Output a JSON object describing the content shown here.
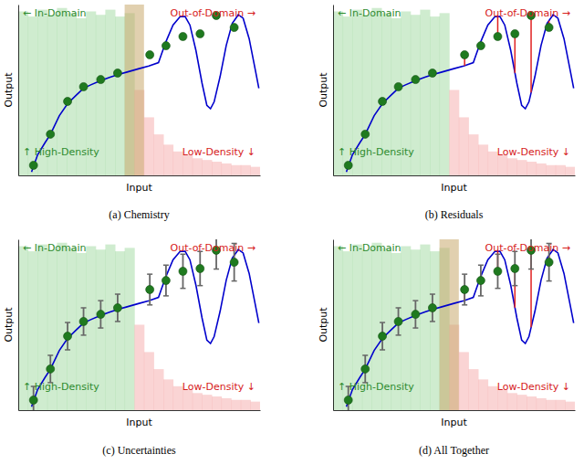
{
  "chart_data": [
    {
      "type": "scatter",
      "title": "(a) Chemistry",
      "x_label": "Input",
      "y_label": "Output",
      "xlim": [
        0,
        10
      ],
      "ylim": [
        0,
        10
      ],
      "tick_labels": false,
      "grid": false,
      "annotations": [
        "← In-Domain",
        "Out-of-Domain →",
        "↑ High-Density",
        "Low-Density ↓"
      ],
      "density": {
        "bins": [
          0,
          0.4,
          0.8,
          1.2,
          1.6,
          2,
          2.4,
          2.8,
          3.2,
          3.6,
          4,
          4.4,
          4.8,
          5.2,
          5.6,
          6,
          6.4,
          6.8,
          7.2,
          7.6,
          8,
          8.4,
          8.8,
          9.2,
          9.6,
          10
        ],
        "counts": [
          9.6,
          9.3,
          9.7,
          9.4,
          9.8,
          9.5,
          9.2,
          9.6,
          9.4,
          9.7,
          9.3,
          9.5,
          5.0,
          3.4,
          2.4,
          1.8,
          1.4,
          1.2,
          1.0,
          0.9,
          0.8,
          0.7,
          0.6,
          0.6,
          0.5
        ],
        "colors": [
          "#a8dca8",
          "#a8dca8",
          "#a8dca8",
          "#a8dca8",
          "#a8dca8",
          "#a8dca8",
          "#a8dca8",
          "#a8dca8",
          "#a8dca8",
          "#a8dca8",
          "#a8dca8",
          "#a8dca8",
          "#f5b0b0",
          "#f5b0b0",
          "#f5b0b0",
          "#f5b0b0",
          "#f5b0b0",
          "#f5b0b0",
          "#f5b0b0",
          "#f5b0b0",
          "#f5b0b0",
          "#f5b0b0",
          "#f5b0b0",
          "#f5b0b0",
          "#f5b0b0"
        ]
      },
      "highlight": {
        "range": [
          4.4,
          5.2
        ],
        "color": "#c8a96e"
      },
      "curve": {
        "x": [
          0.55,
          0.8,
          1.1,
          1.33,
          1.7,
          2.04,
          2.4,
          2.7,
          3.0,
          3.41,
          3.8,
          4.11,
          4.5,
          5.0,
          5.4,
          5.8,
          5.9,
          6.1,
          6.4,
          6.7,
          6.9,
          7.1,
          7.35,
          7.6,
          7.8,
          7.95,
          8.1,
          8.35,
          8.6,
          8.85,
          9.1,
          9.3,
          9.55,
          9.8,
          9.95
        ],
        "values": [
          0.2,
          1.2,
          1.9,
          2.4,
          3.5,
          4.2,
          4.7,
          5.1,
          5.3,
          5.55,
          5.75,
          5.9,
          6.05,
          6.25,
          6.4,
          6.6,
          7.0,
          7.8,
          8.8,
          9.3,
          9.3,
          8.8,
          7.3,
          5.4,
          4.1,
          3.9,
          4.3,
          5.8,
          7.6,
          8.9,
          9.4,
          9.2,
          8.0,
          6.2,
          5.1
        ],
        "color": "#0000cc"
      },
      "points": {
        "x": [
          0.63,
          1.33,
          2.04,
          2.7,
          3.41,
          4.11,
          5.44,
          6.11,
          6.81,
          7.52,
          8.19,
          8.93
        ],
        "values": [
          0.59,
          2.41,
          4.33,
          5.19,
          5.61,
          5.99,
          7.06,
          7.59,
          8.13,
          8.29,
          9.36,
          8.66
        ],
        "color": "#1f7a1f"
      }
    },
    {
      "type": "scatter",
      "title": "(b) Residuals",
      "x_label": "Input",
      "y_label": "Output",
      "xlim": [
        0,
        10
      ],
      "ylim": [
        0,
        10
      ],
      "tick_labels": false,
      "grid": false,
      "annotations": [
        "← In-Domain",
        "Out-of-Domain →",
        "↑ High-Density",
        "Low-Density ↓"
      ],
      "density": {
        "bins": [
          0,
          0.4,
          0.8,
          1.2,
          1.6,
          2,
          2.4,
          2.8,
          3.2,
          3.6,
          4,
          4.4,
          4.8,
          5.2,
          5.6,
          6,
          6.4,
          6.8,
          7.2,
          7.6,
          8,
          8.4,
          8.8,
          9.2,
          9.6,
          10
        ],
        "counts": [
          9.6,
          9.3,
          9.7,
          9.4,
          9.8,
          9.5,
          9.2,
          9.6,
          9.4,
          9.7,
          9.3,
          9.5,
          5.0,
          3.4,
          2.4,
          1.8,
          1.4,
          1.2,
          1.0,
          0.9,
          0.8,
          0.7,
          0.6,
          0.6,
          0.5
        ],
        "colors": [
          "#a8dca8",
          "#a8dca8",
          "#a8dca8",
          "#a8dca8",
          "#a8dca8",
          "#a8dca8",
          "#a8dca8",
          "#a8dca8",
          "#a8dca8",
          "#a8dca8",
          "#a8dca8",
          "#a8dca8",
          "#f5b0b0",
          "#f5b0b0",
          "#f5b0b0",
          "#f5b0b0",
          "#f5b0b0",
          "#f5b0b0",
          "#f5b0b0",
          "#f5b0b0",
          "#f5b0b0",
          "#f5b0b0",
          "#f5b0b0",
          "#f5b0b0",
          "#f5b0b0"
        ]
      },
      "curve": {
        "x": [
          0.55,
          0.8,
          1.1,
          1.33,
          1.7,
          2.04,
          2.4,
          2.7,
          3.0,
          3.41,
          3.8,
          4.11,
          4.5,
          5.0,
          5.4,
          5.8,
          5.9,
          6.1,
          6.4,
          6.7,
          6.9,
          7.1,
          7.35,
          7.6,
          7.8,
          7.95,
          8.1,
          8.35,
          8.6,
          8.85,
          9.1,
          9.3,
          9.55,
          9.8,
          9.95
        ],
        "values": [
          0.2,
          1.2,
          1.9,
          2.4,
          3.5,
          4.2,
          4.7,
          5.1,
          5.3,
          5.55,
          5.75,
          5.9,
          6.05,
          6.25,
          6.4,
          6.6,
          7.0,
          7.8,
          8.8,
          9.3,
          9.3,
          8.8,
          7.3,
          5.4,
          4.1,
          3.9,
          4.3,
          5.8,
          7.6,
          8.9,
          9.4,
          9.2,
          8.0,
          6.2,
          5.1
        ],
        "color": "#0000cc"
      },
      "points": {
        "x": [
          0.63,
          1.33,
          2.04,
          2.7,
          3.41,
          4.11,
          5.44,
          6.11,
          6.81,
          7.52,
          8.19,
          8.93
        ],
        "values": [
          0.59,
          2.41,
          4.33,
          5.19,
          5.61,
          5.99,
          7.06,
          7.59,
          8.13,
          8.29,
          9.36,
          8.66
        ],
        "color": "#1f7a1f"
      },
      "residuals": {
        "values": [
          null,
          null,
          null,
          null,
          null,
          null,
          0.64,
          -0.21,
          -1.17,
          2.29,
          4.51,
          -0.39
        ],
        "color": "#e02020"
      }
    },
    {
      "type": "scatter",
      "title": "(c) Uncertainties",
      "x_label": "Input",
      "y_label": "Output",
      "xlim": [
        0,
        10
      ],
      "ylim": [
        0,
        10
      ],
      "tick_labels": false,
      "grid": false,
      "annotations": [
        "← In-Domain",
        "Out-of-Domain →",
        "↑ High-Density",
        "Low-Density ↓"
      ],
      "density": {
        "bins": [
          0,
          0.4,
          0.8,
          1.2,
          1.6,
          2,
          2.4,
          2.8,
          3.2,
          3.6,
          4,
          4.4,
          4.8,
          5.2,
          5.6,
          6,
          6.4,
          6.8,
          7.2,
          7.6,
          8,
          8.4,
          8.8,
          9.2,
          9.6,
          10
        ],
        "counts": [
          9.6,
          9.3,
          9.7,
          9.4,
          9.8,
          9.5,
          9.2,
          9.6,
          9.4,
          9.7,
          9.3,
          9.5,
          5.0,
          3.4,
          2.4,
          1.8,
          1.4,
          1.2,
          1.0,
          0.9,
          0.8,
          0.7,
          0.6,
          0.6,
          0.5
        ],
        "colors": [
          "#a8dca8",
          "#a8dca8",
          "#a8dca8",
          "#a8dca8",
          "#a8dca8",
          "#a8dca8",
          "#a8dca8",
          "#a8dca8",
          "#a8dca8",
          "#a8dca8",
          "#a8dca8",
          "#a8dca8",
          "#f5b0b0",
          "#f5b0b0",
          "#f5b0b0",
          "#f5b0b0",
          "#f5b0b0",
          "#f5b0b0",
          "#f5b0b0",
          "#f5b0b0",
          "#f5b0b0",
          "#f5b0b0",
          "#f5b0b0",
          "#f5b0b0",
          "#f5b0b0"
        ]
      },
      "curve": {
        "x": [
          0.55,
          0.8,
          1.1,
          1.33,
          1.7,
          2.04,
          2.4,
          2.7,
          3.0,
          3.41,
          3.8,
          4.11,
          4.5,
          5.0,
          5.4,
          5.8,
          5.9,
          6.1,
          6.4,
          6.7,
          6.9,
          7.1,
          7.35,
          7.6,
          7.8,
          7.95,
          8.1,
          8.35,
          8.6,
          8.85,
          9.1,
          9.3,
          9.55,
          9.8,
          9.95
        ],
        "values": [
          0.2,
          1.2,
          1.9,
          2.4,
          3.5,
          4.2,
          4.7,
          5.1,
          5.3,
          5.55,
          5.75,
          5.9,
          6.05,
          6.25,
          6.4,
          6.6,
          7.0,
          7.8,
          8.8,
          9.3,
          9.3,
          8.8,
          7.3,
          5.4,
          4.1,
          3.9,
          4.3,
          5.8,
          7.6,
          8.9,
          9.4,
          9.2,
          8.0,
          6.2,
          5.1
        ],
        "color": "#0000cc"
      },
      "points": {
        "x": [
          0.63,
          1.33,
          2.04,
          2.7,
          3.41,
          4.11,
          5.44,
          6.11,
          6.81,
          7.52,
          8.19,
          8.93
        ],
        "values": [
          0.59,
          2.41,
          4.33,
          5.19,
          5.61,
          5.99,
          7.06,
          7.59,
          8.13,
          8.29,
          9.36,
          8.66
        ],
        "color": "#1f7a1f"
      },
      "errors": {
        "values": [
          0.8,
          0.8,
          0.8,
          0.8,
          0.8,
          0.8,
          0.9,
          0.9,
          1.0,
          1.0,
          1.1,
          1.1
        ],
        "color": "#666666"
      }
    },
    {
      "type": "scatter",
      "title": "(d) All Together",
      "x_label": "Input",
      "y_label": "Output",
      "xlim": [
        0,
        10
      ],
      "ylim": [
        0,
        10
      ],
      "tick_labels": false,
      "grid": false,
      "annotations": [
        "← In-Domain",
        "Out-of-Domain →",
        "↑ High-Density",
        "Low-Density ↓"
      ],
      "density": {
        "bins": [
          0,
          0.4,
          0.8,
          1.2,
          1.6,
          2,
          2.4,
          2.8,
          3.2,
          3.6,
          4,
          4.4,
          4.8,
          5.2,
          5.6,
          6,
          6.4,
          6.8,
          7.2,
          7.6,
          8,
          8.4,
          8.8,
          9.2,
          9.6,
          10
        ],
        "counts": [
          9.6,
          9.3,
          9.7,
          9.4,
          9.8,
          9.5,
          9.2,
          9.6,
          9.4,
          9.7,
          9.3,
          9.5,
          5.0,
          3.4,
          2.4,
          1.8,
          1.4,
          1.2,
          1.0,
          0.9,
          0.8,
          0.7,
          0.6,
          0.6,
          0.5
        ],
        "colors": [
          "#a8dca8",
          "#a8dca8",
          "#a8dca8",
          "#a8dca8",
          "#a8dca8",
          "#a8dca8",
          "#a8dca8",
          "#a8dca8",
          "#a8dca8",
          "#a8dca8",
          "#a8dca8",
          "#a8dca8",
          "#f5b0b0",
          "#f5b0b0",
          "#f5b0b0",
          "#f5b0b0",
          "#f5b0b0",
          "#f5b0b0",
          "#f5b0b0",
          "#f5b0b0",
          "#f5b0b0",
          "#f5b0b0",
          "#f5b0b0",
          "#f5b0b0",
          "#f5b0b0"
        ]
      },
      "highlight": {
        "range": [
          4.4,
          5.2
        ],
        "color": "#c8a96e"
      },
      "curve": {
        "x": [
          0.55,
          0.8,
          1.1,
          1.33,
          1.7,
          2.04,
          2.4,
          2.7,
          3.0,
          3.41,
          3.8,
          4.11,
          4.5,
          5.0,
          5.4,
          5.8,
          5.9,
          6.1,
          6.4,
          6.7,
          6.9,
          7.1,
          7.35,
          7.6,
          7.8,
          7.95,
          8.1,
          8.35,
          8.6,
          8.85,
          9.1,
          9.3,
          9.55,
          9.8,
          9.95
        ],
        "values": [
          0.2,
          1.2,
          1.9,
          2.4,
          3.5,
          4.2,
          4.7,
          5.1,
          5.3,
          5.55,
          5.75,
          5.9,
          6.05,
          6.25,
          6.4,
          6.6,
          7.0,
          7.8,
          8.8,
          9.3,
          9.3,
          8.8,
          7.3,
          5.4,
          4.1,
          3.9,
          4.3,
          5.8,
          7.6,
          8.9,
          9.4,
          9.2,
          8.0,
          6.2,
          5.1
        ],
        "color": "#0000cc"
      },
      "points": {
        "x": [
          0.63,
          1.33,
          2.04,
          2.7,
          3.41,
          4.11,
          5.44,
          6.11,
          6.81,
          7.52,
          8.19,
          8.93
        ],
        "values": [
          0.59,
          2.41,
          4.33,
          5.19,
          5.61,
          5.99,
          7.06,
          7.59,
          8.13,
          8.29,
          9.36,
          8.66
        ],
        "color": "#1f7a1f"
      },
      "residuals": {
        "values": [
          null,
          null,
          null,
          null,
          null,
          null,
          0.64,
          -0.21,
          -1.17,
          2.29,
          4.51,
          -0.39
        ],
        "color": "#e02020"
      },
      "errors": {
        "values": [
          0.8,
          0.8,
          0.8,
          0.8,
          0.8,
          0.8,
          0.9,
          0.9,
          1.0,
          1.0,
          1.1,
          1.1
        ],
        "color": "#666666"
      }
    }
  ]
}
